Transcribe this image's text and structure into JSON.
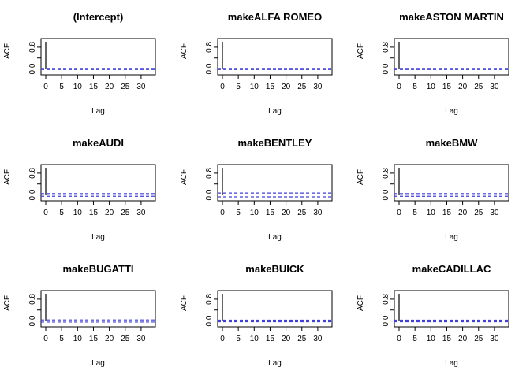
{
  "chart_data": [
    {
      "type": "bar",
      "title": "(Intercept)",
      "xlabel": "Lag",
      "ylabel": "ACF",
      "xlim": [
        0,
        33
      ],
      "ylim": [
        -0.1,
        1.0
      ],
      "xticks": [
        0,
        5,
        10,
        15,
        20,
        25,
        30
      ],
      "yticks": [
        "0.0",
        "0.8"
      ],
      "ci": 0.02,
      "lags": [
        0,
        1,
        2,
        3,
        4,
        5,
        6,
        7,
        8,
        9,
        10,
        11,
        12,
        13,
        14,
        15,
        16,
        17,
        18,
        19,
        20,
        21,
        22,
        23,
        24,
        25,
        26,
        27,
        28,
        29,
        30,
        31,
        32,
        33
      ],
      "acf": [
        1,
        0,
        0,
        0,
        0,
        0,
        0,
        0,
        0,
        0,
        0,
        0,
        0,
        0,
        0,
        0,
        0,
        0,
        0,
        0,
        0,
        0,
        0,
        0,
        0,
        0,
        0,
        0,
        0,
        0,
        0,
        0,
        0,
        0
      ]
    },
    {
      "type": "bar",
      "title": "makeALFA ROMEO",
      "xlabel": "Lag",
      "ylabel": "ACF",
      "xlim": [
        0,
        33
      ],
      "ylim": [
        -0.1,
        1.0
      ],
      "xticks": [
        0,
        5,
        10,
        15,
        20,
        25,
        30
      ],
      "yticks": [
        "0.0",
        "0.8"
      ],
      "ci": 0.02,
      "lags": [
        0,
        1,
        2,
        3,
        4,
        5,
        6,
        7,
        8,
        9,
        10,
        11,
        12,
        13,
        14,
        15,
        16,
        17,
        18,
        19,
        20,
        21,
        22,
        23,
        24,
        25,
        26,
        27,
        28,
        29,
        30,
        31,
        32,
        33
      ],
      "acf": [
        1,
        0,
        0,
        0,
        0,
        0,
        0,
        0,
        0,
        0,
        0,
        0,
        0,
        0,
        0,
        0,
        0,
        0,
        0,
        0,
        0,
        0,
        0,
        0,
        0,
        0,
        0,
        0,
        0,
        0,
        0,
        0,
        0,
        0
      ]
    },
    {
      "type": "bar",
      "title": "makeASTON MARTIN",
      "xlabel": "Lag",
      "ylabel": "ACF",
      "xlim": [
        0,
        33
      ],
      "ylim": [
        -0.1,
        1.0
      ],
      "xticks": [
        0,
        5,
        10,
        15,
        20,
        25,
        30
      ],
      "yticks": [
        "0.0",
        "0.8"
      ],
      "ci": 0.02,
      "lags": [
        0,
        1,
        2,
        3,
        4,
        5,
        6,
        7,
        8,
        9,
        10,
        11,
        12,
        13,
        14,
        15,
        16,
        17,
        18,
        19,
        20,
        21,
        22,
        23,
        24,
        25,
        26,
        27,
        28,
        29,
        30,
        31,
        32,
        33
      ],
      "acf": [
        1,
        0,
        0,
        0,
        0,
        0,
        0,
        0,
        0,
        0,
        0,
        0,
        0,
        0,
        0,
        0,
        0,
        0,
        0,
        0,
        0,
        0,
        0,
        0,
        0,
        0,
        0,
        0,
        0,
        0,
        0,
        0,
        0,
        0
      ]
    },
    {
      "type": "bar",
      "title": "makeAUDI",
      "xlabel": "Lag",
      "ylabel": "ACF",
      "xlim": [
        0,
        33
      ],
      "ylim": [
        -0.1,
        1.0
      ],
      "xticks": [
        0,
        5,
        10,
        15,
        20,
        25,
        30
      ],
      "yticks": [
        "0.0",
        "0.8"
      ],
      "ci": 0.05,
      "lags": [
        0,
        1,
        2,
        3,
        4,
        5,
        6,
        7,
        8,
        9,
        10,
        11,
        12,
        13,
        14,
        15,
        16,
        17,
        18,
        19,
        20,
        21,
        22,
        23,
        24,
        25,
        26,
        27,
        28,
        29,
        30,
        31,
        32,
        33
      ],
      "acf": [
        1,
        0,
        0,
        0,
        0,
        0,
        0,
        0,
        0,
        0,
        0,
        0,
        0,
        0,
        0,
        0,
        0,
        0,
        0,
        0,
        0,
        0,
        0,
        0,
        0,
        0,
        0,
        0,
        0,
        0,
        0,
        0,
        0,
        0
      ]
    },
    {
      "type": "bar",
      "title": "makeBENTLEY",
      "xlabel": "Lag",
      "ylabel": "ACF",
      "xlim": [
        0,
        33
      ],
      "ylim": [
        -0.1,
        1.0
      ],
      "xticks": [
        0,
        5,
        10,
        15,
        20,
        25,
        30
      ],
      "yticks": [
        "0.0",
        "0.8"
      ],
      "ci": 0.07,
      "lags": [
        0,
        1,
        2,
        3,
        4,
        5,
        6,
        7,
        8,
        9,
        10,
        11,
        12,
        13,
        14,
        15,
        16,
        17,
        18,
        19,
        20,
        21,
        22,
        23,
        24,
        25,
        26,
        27,
        28,
        29,
        30,
        31,
        32,
        33
      ],
      "acf": [
        1,
        0,
        0,
        0,
        0,
        0,
        0,
        0,
        0,
        0,
        0,
        0,
        0,
        0,
        0,
        0,
        0,
        0,
        0,
        0,
        0,
        0,
        0,
        0,
        0,
        0,
        0,
        0,
        0,
        0,
        0,
        0,
        0,
        0
      ]
    },
    {
      "type": "bar",
      "title": "makeBMW",
      "xlabel": "Lag",
      "ylabel": "ACF",
      "xlim": [
        0,
        33
      ],
      "ylim": [
        -0.1,
        1.0
      ],
      "xticks": [
        0,
        5,
        10,
        15,
        20,
        25,
        30
      ],
      "yticks": [
        "0.0",
        "0.8"
      ],
      "ci": 0.05,
      "lags": [
        0,
        1,
        2,
        3,
        4,
        5,
        6,
        7,
        8,
        9,
        10,
        11,
        12,
        13,
        14,
        15,
        16,
        17,
        18,
        19,
        20,
        21,
        22,
        23,
        24,
        25,
        26,
        27,
        28,
        29,
        30,
        31,
        32,
        33
      ],
      "acf": [
        1,
        0,
        0,
        0,
        0,
        0,
        0,
        0,
        0,
        0,
        0,
        0,
        0,
        0,
        0,
        0,
        0,
        0,
        0,
        0,
        0,
        0,
        0,
        0,
        0,
        0,
        0,
        0,
        0,
        0,
        0,
        0,
        0,
        0
      ]
    },
    {
      "type": "bar",
      "title": "makeBUGATTI",
      "xlabel": "Lag",
      "ylabel": "ACF",
      "xlim": [
        0,
        33
      ],
      "ylim": [
        -0.1,
        1.0
      ],
      "xticks": [
        0,
        5,
        10,
        15,
        20,
        25,
        30
      ],
      "yticks": [
        "0.0",
        "0.8"
      ],
      "ci": 0.04,
      "lags": [
        0,
        1,
        2,
        3,
        4,
        5,
        6,
        7,
        8,
        9,
        10,
        11,
        12,
        13,
        14,
        15,
        16,
        17,
        18,
        19,
        20,
        21,
        22,
        23,
        24,
        25,
        26,
        27,
        28,
        29,
        30,
        31,
        32,
        33
      ],
      "acf": [
        1,
        0,
        0,
        0,
        0,
        0,
        0,
        0,
        0,
        0,
        0,
        0,
        0,
        0,
        0,
        0,
        0,
        0,
        0,
        0,
        0,
        0,
        0,
        0,
        0,
        0,
        0,
        0,
        0,
        0,
        0,
        0,
        0,
        0
      ]
    },
    {
      "type": "bar",
      "title": "makeBUICK",
      "xlabel": "Lag",
      "ylabel": "ACF",
      "xlim": [
        0,
        33
      ],
      "ylim": [
        -0.1,
        1.0
      ],
      "xticks": [
        0,
        5,
        10,
        15,
        20,
        25,
        30
      ],
      "yticks": [
        "0.0",
        "0.8"
      ],
      "ci": 0.03,
      "lags": [
        0,
        1,
        2,
        3,
        4,
        5,
        6,
        7,
        8,
        9,
        10,
        11,
        12,
        13,
        14,
        15,
        16,
        17,
        18,
        19,
        20,
        21,
        22,
        23,
        24,
        25,
        26,
        27,
        28,
        29,
        30,
        31,
        32,
        33
      ],
      "acf": [
        1,
        0,
        0,
        0,
        0,
        0,
        0,
        0,
        0,
        0,
        0,
        0,
        0,
        0,
        0,
        0,
        0,
        0,
        0,
        0,
        0,
        0,
        0,
        0,
        0,
        0,
        0,
        0,
        0,
        0,
        0,
        0,
        0,
        0
      ]
    },
    {
      "type": "bar",
      "title": "makeCADILLAC",
      "xlabel": "Lag",
      "ylabel": "ACF",
      "xlim": [
        0,
        33
      ],
      "ylim": [
        -0.1,
        1.0
      ],
      "xticks": [
        0,
        5,
        10,
        15,
        20,
        25,
        30
      ],
      "yticks": [
        "0.0",
        "0.8"
      ],
      "ci": 0.03,
      "lags": [
        0,
        1,
        2,
        3,
        4,
        5,
        6,
        7,
        8,
        9,
        10,
        11,
        12,
        13,
        14,
        15,
        16,
        17,
        18,
        19,
        20,
        21,
        22,
        23,
        24,
        25,
        26,
        27,
        28,
        29,
        30,
        31,
        32,
        33
      ],
      "acf": [
        1,
        0,
        0,
        0,
        0,
        0,
        0,
        0,
        0,
        0,
        0,
        0,
        0,
        0,
        0,
        0,
        0,
        0,
        0,
        0,
        0,
        0,
        0,
        0,
        0,
        0,
        0,
        0,
        0,
        0,
        0,
        0,
        0,
        0
      ]
    }
  ],
  "colors": {
    "ci_line": "#3f3fdf",
    "bar": "#000000",
    "axis": "#000000"
  }
}
